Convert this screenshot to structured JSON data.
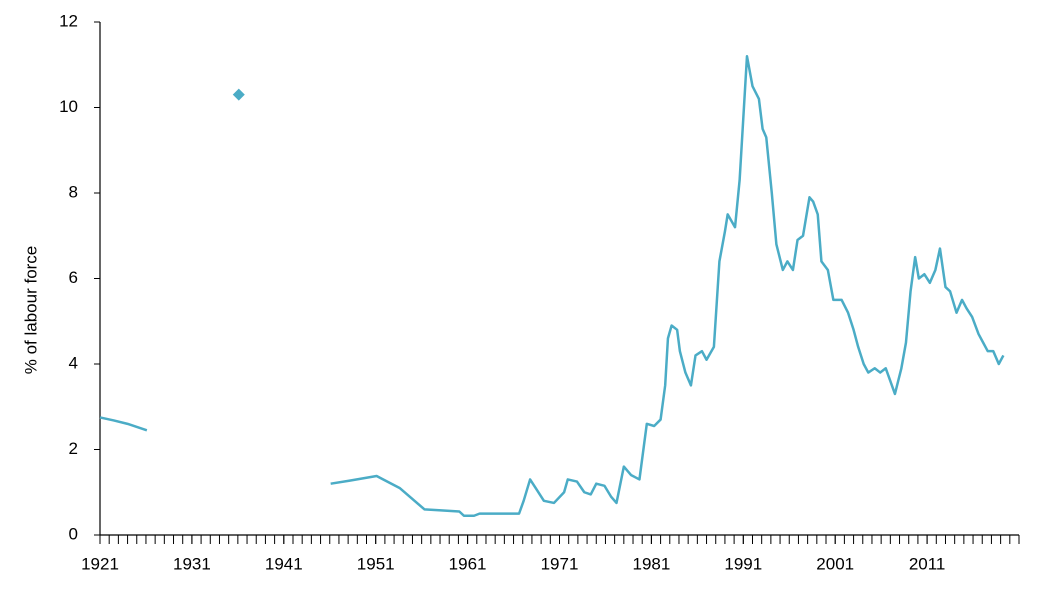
{
  "chart_data": {
    "type": "line",
    "y_label": "% of labour force",
    "xlim": [
      1921,
      2021
    ],
    "xticks": [
      1921,
      1931,
      1941,
      1951,
      1961,
      1971,
      1981,
      1991,
      2001,
      2011
    ],
    "xminor_step": 1,
    "ylim": [
      0,
      12
    ],
    "yticks": [
      0,
      2,
      4,
      6,
      8,
      10,
      12
    ],
    "grid": false,
    "series": [
      {
        "color": "#4bacc6",
        "marker": "none",
        "x": [
          1921,
          1922.5,
          1924,
          1926.1,
          1936.5,
          1946.1,
          1948.1,
          1951.1,
          1953.6,
          1956.3,
          1957.9,
          1960.1,
          1960.6,
          1961.7,
          1962.3,
          1964.4,
          1966.6,
          1967.1,
          1967.8,
          1968.4,
          1969.3,
          1970.4,
          1971.5,
          1971.9,
          1972.9,
          1973.7,
          1974.4,
          1975.0,
          1975.9,
          1976.6,
          1977.2,
          1978.0,
          1978.8,
          1979.7,
          1980.5,
          1981.3,
          1982.0,
          1982.5,
          1982.8,
          1983.2,
          1983.8,
          1984.1,
          1984.7,
          1985.3,
          1985.8,
          1986.5,
          1987.0,
          1987.8,
          1988.4,
          1989.0,
          1989.3,
          1990.1,
          1990.6,
          1991.4,
          1992.0,
          1992.7,
          1993.1,
          1993.5,
          1994.1,
          1994.6,
          1995.3,
          1995.8,
          1996.4,
          1996.9,
          1997.5,
          1998.2,
          1998.6,
          1999.1,
          1999.5,
          2000.2,
          2000.8,
          2001.7,
          2002.4,
          2003.0,
          2003.5,
          2004.1,
          2004.6,
          2005.3,
          2005.9,
          2006.5,
          2007.0,
          2007.5,
          2008.2,
          2008.7,
          2009.2,
          2009.7,
          2010.1,
          2010.7,
          2011.3,
          2011.9,
          2012.4,
          2013.0,
          2013.5,
          2014.2,
          2014.8,
          2015.3,
          2015.9,
          2016.6,
          2017.1,
          2017.6,
          2018.2,
          2018.8,
          2019.3
        ],
        "values": [
          2.75,
          2.68,
          2.6,
          2.45,
          null,
          1.2,
          1.27,
          1.38,
          1.1,
          0.6,
          0.58,
          0.55,
          0.45,
          0.45,
          0.5,
          0.5,
          0.5,
          0.8,
          1.3,
          1.1,
          0.8,
          0.75,
          1.0,
          1.3,
          1.25,
          1.0,
          0.95,
          1.2,
          1.15,
          0.9,
          0.75,
          1.6,
          1.4,
          1.3,
          2.6,
          2.55,
          2.7,
          3.5,
          4.6,
          4.9,
          4.8,
          4.3,
          3.8,
          3.5,
          4.2,
          4.3,
          4.1,
          4.4,
          6.4,
          7.1,
          7.5,
          7.2,
          8.3,
          11.2,
          10.5,
          10.2,
          9.5,
          9.3,
          8.0,
          6.8,
          6.2,
          6.4,
          6.2,
          6.9,
          7.0,
          7.9,
          7.8,
          7.5,
          6.4,
          6.2,
          5.5,
          5.5,
          5.2,
          4.8,
          4.4,
          4.0,
          3.8,
          3.9,
          3.8,
          3.9,
          3.6,
          3.3,
          3.9,
          4.5,
          5.7,
          6.5,
          6.0,
          6.1,
          5.9,
          6.2,
          6.7,
          5.8,
          5.7,
          5.2,
          5.5,
          5.3,
          5.1,
          4.7,
          4.5,
          4.3,
          4.3,
          4.0,
          4.2
        ]
      },
      {
        "color": "#4bacc6",
        "marker": "diamond",
        "x": [
          1936.1
        ],
        "values": [
          10.3
        ]
      }
    ]
  }
}
